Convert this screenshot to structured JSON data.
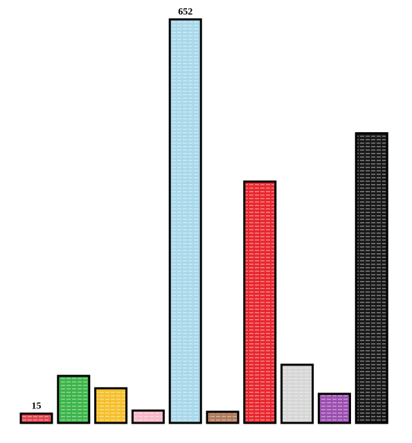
{
  "chart_data": {
    "type": "bar",
    "categories": [
      null,
      null,
      null,
      null,
      null,
      null,
      null,
      null,
      null,
      null
    ],
    "values": [
      15,
      76,
      56,
      20,
      652,
      18,
      390,
      94,
      47,
      468
    ],
    "value_labels": [
      "15",
      null,
      null,
      null,
      "652",
      null,
      null,
      null,
      null,
      null
    ],
    "colors": [
      "#e0454f",
      "#3cb54a",
      "#f5c02c",
      "#f7b8c8",
      "#a8d8ea",
      "#b07a5a",
      "#e8282e",
      "#d6d6d6",
      "#9b4fb0",
      "#1a1a1a"
    ],
    "ylim": [
      0,
      652
    ]
  }
}
